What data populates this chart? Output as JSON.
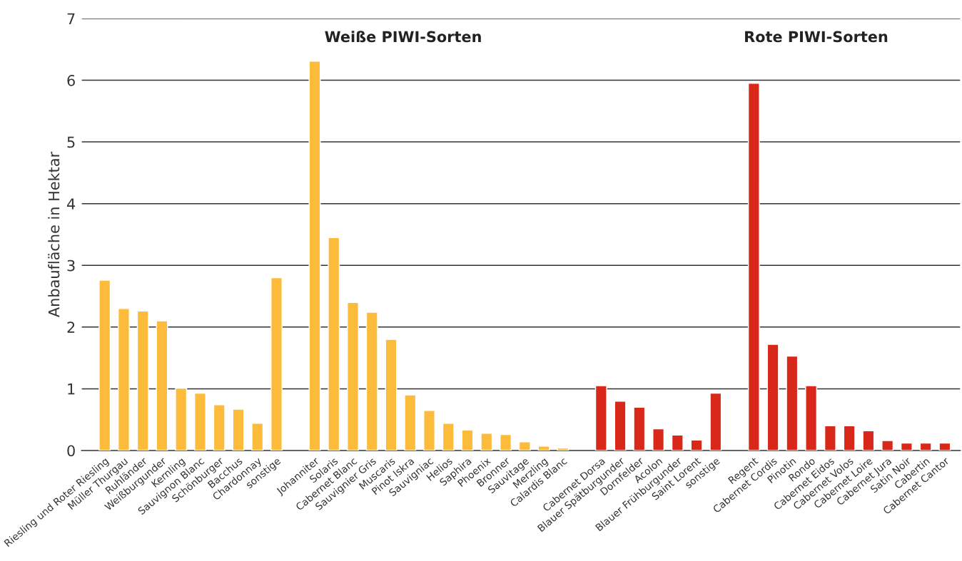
{
  "chart_data": {
    "type": "bar",
    "ylabel": "Anbaufläche in Hektar",
    "annotations": [
      "Weiße PIWI-Sorten",
      "Rote PIWI-Sorten"
    ],
    "categories": [
      "Riesling und Roter Riesling",
      "Müller Thurgau",
      "Ruhländer",
      "Weißburgunder",
      "Kernling",
      "Sauvignon Blanc",
      "Schönburger",
      "Bacchus",
      "Chardonnay",
      "sonstige",
      null,
      "Johanniter",
      "Solaris",
      "Cabernet Blanc",
      "Sauvignier Gris",
      "Muscaris",
      "Pinot Iskra",
      "Sauvigniac",
      "Helios",
      "Saphira",
      "Phoenix",
      "Bronner",
      "Sauvitage",
      "Merzling",
      "Calardis Blanc",
      null,
      "Cabernet Dorsa",
      "Blauer Spätburgunder",
      "Dornfelder",
      "Acolon",
      "Blauer Frühburgunder",
      "Saint Lorent",
      "sonstige",
      null,
      "Regent",
      "Cabernet Cordis",
      "Pinotin",
      "Rondo",
      "Cabernet Eidos",
      "Cabernet Volos",
      "Cabernet Loire",
      "Cabernet Jura",
      "Satin Noir",
      "Cabertin",
      "Cabernet Cantor"
    ],
    "values": [
      2.76,
      2.3,
      2.26,
      2.1,
      1.01,
      0.93,
      0.74,
      0.67,
      0.44,
      2.8,
      null,
      6.31,
      3.45,
      2.4,
      2.24,
      1.8,
      0.9,
      0.65,
      0.44,
      0.33,
      0.28,
      0.26,
      0.14,
      0.07,
      0.04,
      null,
      1.05,
      0.8,
      0.7,
      0.35,
      0.25,
      0.17,
      0.93,
      null,
      5.95,
      1.72,
      1.53,
      1.05,
      0.4,
      0.4,
      0.32,
      0.16,
      0.12,
      0.12,
      0.12
    ],
    "colors": [
      "#fdbb3c",
      "#fdbb3c",
      "#fdbb3c",
      "#fdbb3c",
      "#fdbb3c",
      "#fdbb3c",
      "#fdbb3c",
      "#fdbb3c",
      "#fdbb3c",
      "#fdbb3c",
      null,
      "#fdbb3c",
      "#fdbb3c",
      "#fdbb3c",
      "#fdbb3c",
      "#fdbb3c",
      "#fdbb3c",
      "#fdbb3c",
      "#fdbb3c",
      "#fdbb3c",
      "#fdbb3c",
      "#fdbb3c",
      "#fdbb3c",
      "#fdbb3c",
      "#fdbb3c",
      null,
      "#d82819",
      "#d82819",
      "#d82819",
      "#d82819",
      "#d82819",
      "#d82819",
      "#d82819",
      null,
      "#d82819",
      "#d82819",
      "#d82819",
      "#d82819",
      "#d82819",
      "#d82819",
      "#d82819",
      "#d82819",
      "#d82819",
      "#d82819",
      "#d82819"
    ],
    "ylim": [
      0,
      7
    ],
    "yticks": [
      0,
      1,
      2,
      3,
      4,
      5,
      6,
      7
    ],
    "grid": "y"
  }
}
